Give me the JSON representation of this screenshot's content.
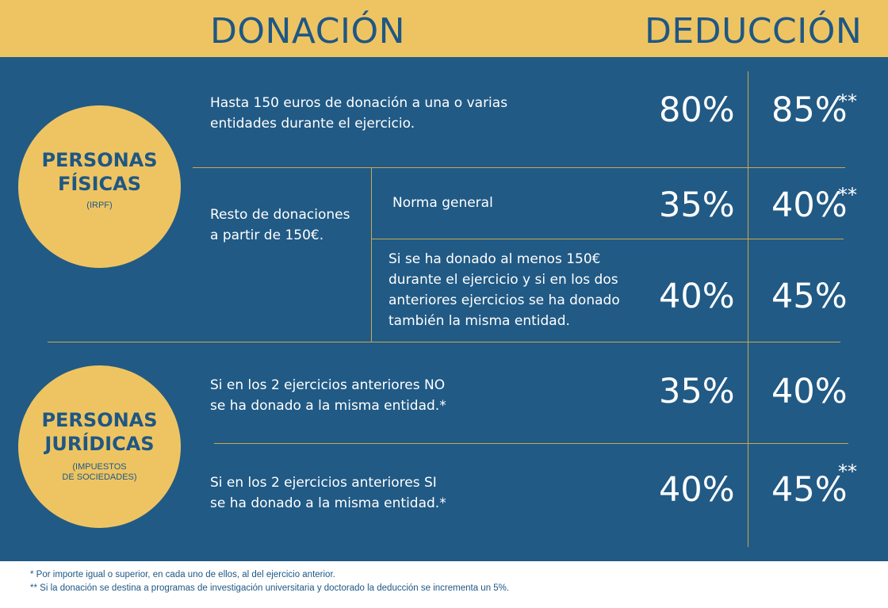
{
  "header": {
    "donation": "DONACIÓN",
    "deduction": "DEDUCCIÓN"
  },
  "personas_fisicas": {
    "title_line1": "PERSONAS",
    "title_line2": "FÍSICAS",
    "subtitle": "(IRPF)",
    "row1": {
      "desc_line1": "Hasta 150 euros de donación a una o varias",
      "desc_line2": "entidades durante el ejercicio.",
      "pct_donation": "80%",
      "pct_deduction": "85%",
      "mark": "**"
    },
    "rest": {
      "label_line1": "Resto de donaciones",
      "label_line2": "a partir de 150€.",
      "general": {
        "desc": "Norma general",
        "pct_donation": "35%",
        "pct_deduction": "40%",
        "mark": "**"
      },
      "recurrent": {
        "desc_line1": "Si se ha donado al menos 150€",
        "desc_line2": "durante el ejercicio y si en los dos",
        "desc_line3": "anteriores ejercicios se ha donado",
        "desc_line4": "también la misma entidad.",
        "pct_donation": "40%",
        "pct_deduction": "45%"
      }
    }
  },
  "personas_juridicas": {
    "title_line1": "PERSONAS",
    "title_line2": "JURÍDICAS",
    "subtitle_line1": "(IMPUESTOS",
    "subtitle_line2": "DE SOCIEDADES)",
    "row_no": {
      "desc_line1": "Si en los 2 ejercicios anteriores NO",
      "desc_line2": "se ha donado a la misma entidad.*",
      "pct_donation": "35%",
      "pct_deduction": "40%"
    },
    "row_si": {
      "desc_line1": "Si en los 2 ejercicios anteriores SI",
      "desc_line2": "se ha donado a la misma entidad.*",
      "pct_donation": "40%",
      "pct_deduction": "45%",
      "mark": "**"
    }
  },
  "footnotes": {
    "note1": "* Por importe igual o superior, en cada uno de ellos, al del ejercicio anterior.",
    "note2": "** Si la donación se destina a programas de investigación universitaria y doctorado la deducción se incrementa un 5%."
  },
  "colors": {
    "yellow": "#eec462",
    "blue": "#215a85",
    "text_blue": "#1e5784",
    "line": "#c9a94e"
  }
}
